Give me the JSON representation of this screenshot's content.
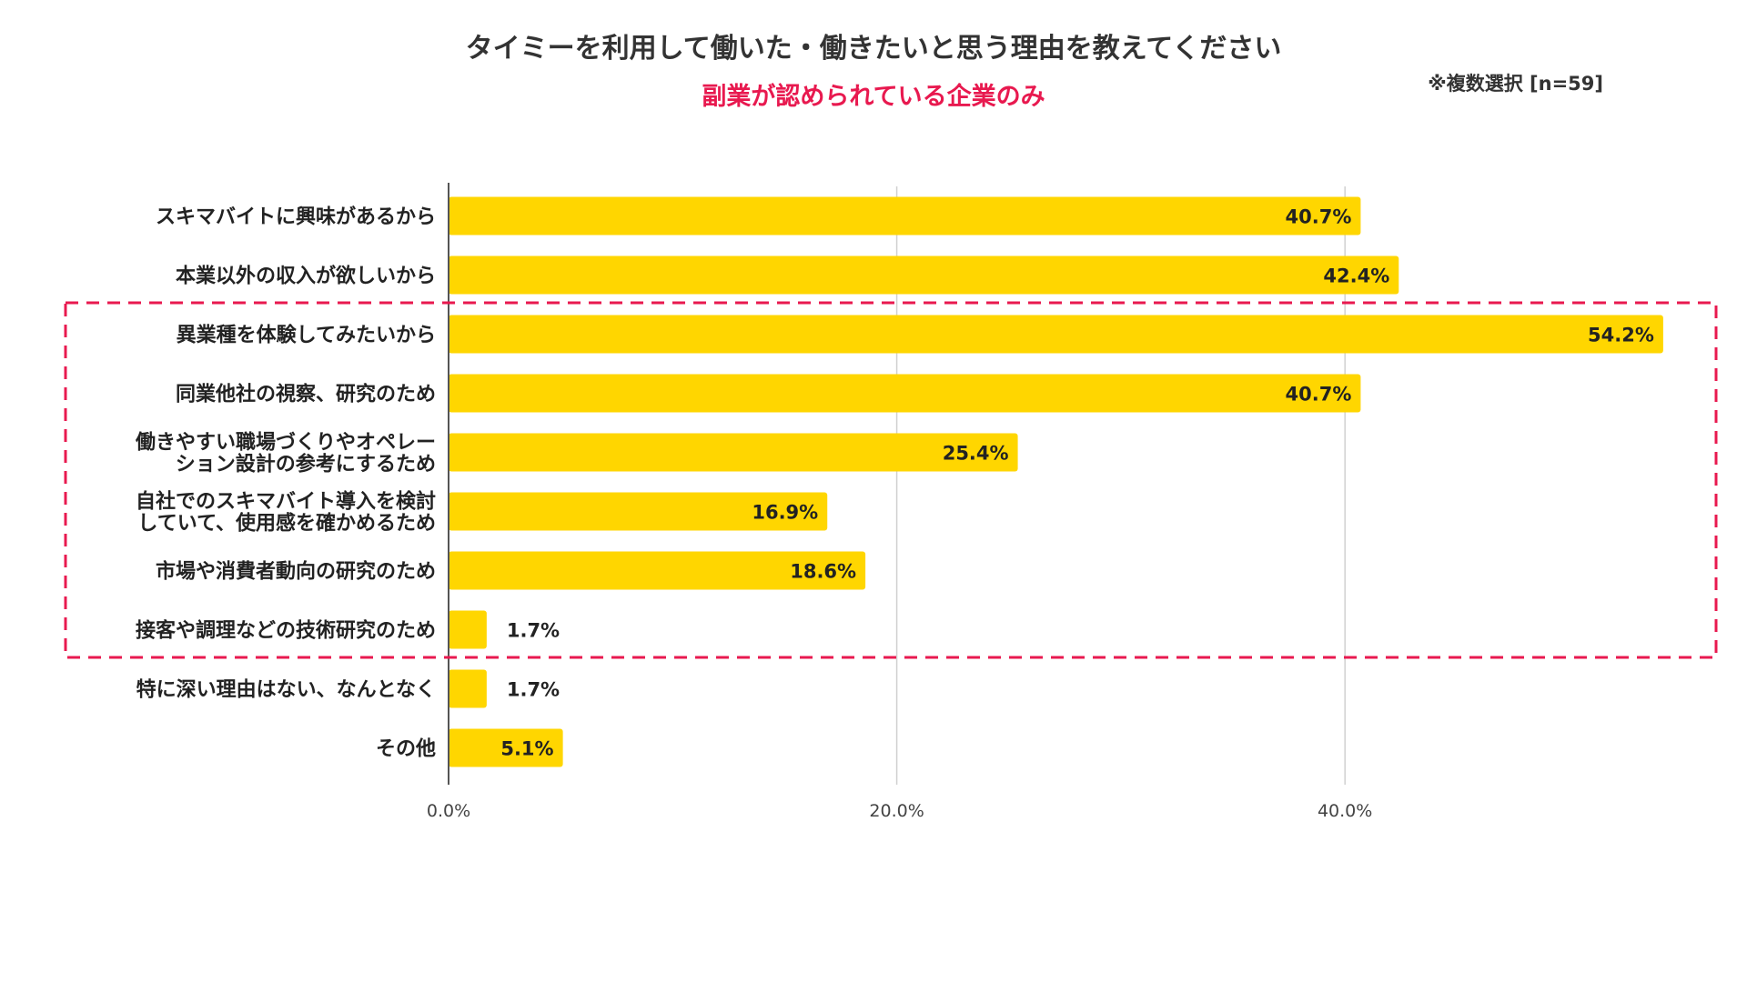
{
  "header": {
    "title": "タイミーを利用して働いた・働きたいと思う理由を教えてください",
    "subtitle": "副業が認められている企業のみ",
    "note": "※複数選択 [n=59]"
  },
  "colors": {
    "bar": "#FFD600",
    "highlight": "#E8194F",
    "grid": "#D0D0D0",
    "axis": "#555555",
    "text": "#222222"
  },
  "chart_data": {
    "type": "bar",
    "orientation": "horizontal",
    "title": "タイミーを利用して働いた・働きたいと思う理由を教えてください",
    "subtitle": "副業が認められている企業のみ",
    "xlabel": "",
    "ylabel": "",
    "xlim": [
      0,
      56.6
    ],
    "grid": true,
    "ticks": [
      {
        "value": 0,
        "label": "0.0%"
      },
      {
        "value": 20,
        "label": "20.0%"
      },
      {
        "value": 40,
        "label": "40.0%"
      }
    ],
    "categories": [
      [
        "スキマバイトに興味があるから"
      ],
      [
        "本業以外の収入が欲しいから"
      ],
      [
        "異業種を体験してみたいから"
      ],
      [
        "同業他社の視察、研究のため"
      ],
      [
        "働きやすい職場づくりやオペレー",
        "ション設計の参考にするため"
      ],
      [
        "自社でのスキマバイト導入を検討",
        "していて、使用感を確かめるため"
      ],
      [
        "市場や消費者動向の研究のため"
      ],
      [
        "接客や調理などの技術研究のため"
      ],
      [
        "特に深い理由はない、なんとなく"
      ],
      [
        "その他"
      ]
    ],
    "values": [
      40.7,
      42.4,
      54.2,
      40.7,
      25.4,
      16.9,
      18.6,
      1.7,
      1.7,
      5.1
    ],
    "value_labels": [
      "40.7%",
      "42.4%",
      "54.2%",
      "40.7%",
      "25.4%",
      "16.9%",
      "18.6%",
      "1.7%",
      "1.7%",
      "5.1%"
    ],
    "highlight_range": {
      "from_index": 2,
      "to_index": 7,
      "style": "dashed box"
    }
  }
}
